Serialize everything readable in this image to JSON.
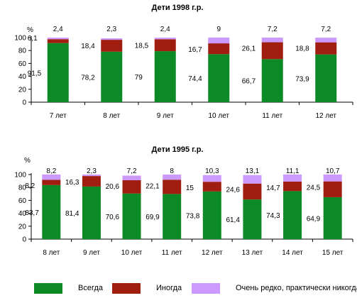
{
  "legend": {
    "items": [
      {
        "label": "Всегда",
        "color": "#0c8a26"
      },
      {
        "label": "Иногда",
        "color": "#a01e0f"
      },
      {
        "label": "Очень редко, практически никогда",
        "color": "#cc99ff"
      }
    ]
  },
  "chart_data": [
    {
      "type": "bar",
      "stacked": true,
      "title": "Дети 1998 г.р.",
      "ylabel": "%",
      "ylim": [
        0,
        100
      ],
      "yticks": [
        0,
        20,
        40,
        60,
        80,
        100
      ],
      "categories": [
        "7 лет",
        "8 лет",
        "9 лет",
        "10 лет",
        "11 лет",
        "12 лет"
      ],
      "series": [
        {
          "name": "Всегда",
          "color": "#0c8a26",
          "values": [
            91.5,
            78.2,
            79,
            74.4,
            66.7,
            73.9
          ]
        },
        {
          "name": "Иногда",
          "color": "#a01e0f",
          "values": [
            6.1,
            18.4,
            18.5,
            16.7,
            26.1,
            18.8
          ]
        },
        {
          "name": "Очень редко, практически никогда",
          "color": "#cc99ff",
          "values": [
            2.4,
            2.3,
            2.4,
            9,
            7.2,
            7.2
          ]
        }
      ]
    },
    {
      "type": "bar",
      "stacked": true,
      "title": "Дети 1995 г.р.",
      "ylabel": "%",
      "ylim": [
        0,
        100
      ],
      "yticks": [
        0,
        20,
        40,
        60,
        80,
        100
      ],
      "categories": [
        "8 лет",
        "9 лет",
        "10 лет",
        "11 лет",
        "12 лет",
        "13 лет",
        "14 лет",
        "15 лет"
      ],
      "series": [
        {
          "name": "Всегда",
          "color": "#0c8a26",
          "values": [
            83.7,
            81.4,
            70.6,
            69.9,
            73.8,
            61.4,
            74.3,
            64.9
          ]
        },
        {
          "name": "Иногда",
          "color": "#a01e0f",
          "values": [
            8.2,
            16.3,
            20.6,
            22.1,
            15,
            24.6,
            14.7,
            24.5
          ]
        },
        {
          "name": "Очень редко, практически никогда",
          "color": "#cc99ff",
          "values": [
            8.2,
            2.3,
            7.2,
            8,
            10.3,
            13.1,
            11.1,
            10.7
          ]
        }
      ]
    }
  ]
}
